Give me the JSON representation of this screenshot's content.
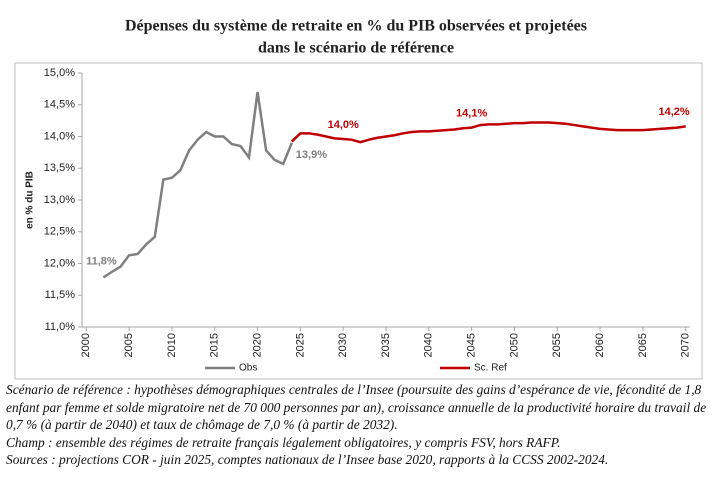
{
  "chart_data": {
    "type": "line",
    "title": "Dépenses du système de retraite en % du PIB observées et projetées",
    "subtitle": "dans le scénario de référence",
    "y_label": "en % du PIB",
    "xlim": [
      1999.5,
      2070.5
    ],
    "xticks": [
      2000,
      2005,
      2010,
      2015,
      2020,
      2025,
      2030,
      2035,
      2040,
      2045,
      2050,
      2055,
      2060,
      2065,
      2070
    ],
    "ylim": [
      11,
      15
    ],
    "yticks": [
      {
        "value": 11,
        "label": "11,0%"
      },
      {
        "value": 11.5,
        "label": "11,5%"
      },
      {
        "value": 12,
        "label": "12,0%"
      },
      {
        "value": 12.5,
        "label": "12,5%"
      },
      {
        "value": 13,
        "label": "13,0%"
      },
      {
        "value": 13.5,
        "label": "13,5%"
      },
      {
        "value": 14,
        "label": "14,0%"
      },
      {
        "value": 14.5,
        "label": "14,5%"
      },
      {
        "value": 15,
        "label": "15,0%"
      }
    ],
    "grid": false,
    "legend": "bottom",
    "series": [
      {
        "name": "Obs",
        "color": "#7f7f7f",
        "x": [
          2002,
          2003,
          2004,
          2005,
          2006,
          2007,
          2008,
          2009,
          2010,
          2011,
          2012,
          2013,
          2014,
          2015,
          2016,
          2017,
          2018,
          2019,
          2020,
          2021,
          2022,
          2023,
          2024
        ],
        "values": [
          11.78,
          11.87,
          11.95,
          12.13,
          12.15,
          12.3,
          12.42,
          13.32,
          13.35,
          13.47,
          13.78,
          13.95,
          14.07,
          14.0,
          14.0,
          13.88,
          13.85,
          13.67,
          14.7,
          13.78,
          13.63,
          13.57,
          13.9
        ],
        "value_labels": [
          "11,8%",
          null,
          null,
          null,
          null,
          null,
          null,
          null,
          null,
          null,
          null,
          null,
          null,
          null,
          null,
          null,
          null,
          null,
          null,
          null,
          null,
          null,
          "13,9%"
        ]
      },
      {
        "name": "Sc. Ref",
        "color": "#c00000",
        "x": [
          2024,
          2025,
          2026,
          2027,
          2028,
          2029,
          2030,
          2031,
          2032,
          2033,
          2034,
          2035,
          2036,
          2037,
          2038,
          2039,
          2040,
          2041,
          2042,
          2043,
          2044,
          2045,
          2046,
          2047,
          2048,
          2049,
          2050,
          2051,
          2052,
          2053,
          2054,
          2055,
          2056,
          2057,
          2058,
          2059,
          2060,
          2061,
          2062,
          2063,
          2064,
          2065,
          2066,
          2067,
          2068,
          2069,
          2070
        ],
        "values": [
          13.92,
          14.05,
          14.05,
          14.03,
          14.0,
          13.97,
          13.96,
          13.95,
          13.91,
          13.95,
          13.98,
          14.0,
          14.02,
          14.05,
          14.07,
          14.08,
          14.08,
          14.09,
          14.1,
          14.11,
          14.13,
          14.14,
          14.18,
          14.19,
          14.19,
          14.2,
          14.21,
          14.21,
          14.22,
          14.22,
          14.22,
          14.21,
          14.2,
          14.18,
          14.16,
          14.14,
          14.12,
          14.11,
          14.1,
          14.1,
          14.1,
          14.1,
          14.11,
          14.12,
          14.13,
          14.14,
          14.16
        ],
        "value_labels": [
          null,
          null,
          null,
          null,
          null,
          null,
          "14,0%",
          null,
          null,
          null,
          null,
          null,
          null,
          null,
          null,
          null,
          null,
          null,
          null,
          null,
          null,
          "14,1%",
          null,
          null,
          null,
          null,
          null,
          null,
          null,
          null,
          null,
          null,
          null,
          null,
          null,
          null,
          null,
          null,
          null,
          null,
          null,
          null,
          null,
          null,
          null,
          null,
          "14,2%"
        ]
      }
    ],
    "notes": [
      "Scénario de référence : hypothèses démographiques centrales de l’Insee (poursuite des gains d’espérance de vie, fécondité de 1,8 enfant par femme et solde migratoire net de 70 000 personnes par an), croissance annuelle de la productivité horaire du travail de 0,7 % (à partir de 2040) et taux de chômage de 7,0 % (à partir de 2032).",
      "Champ : ensemble des régimes de retraite français légalement obligatoires, y compris FSV, hors RAFP.",
      "Sources : projections COR - juin 2025, comptes nationaux de l’Insee base 2020, rapports à la CCSS 2002-2024."
    ]
  }
}
